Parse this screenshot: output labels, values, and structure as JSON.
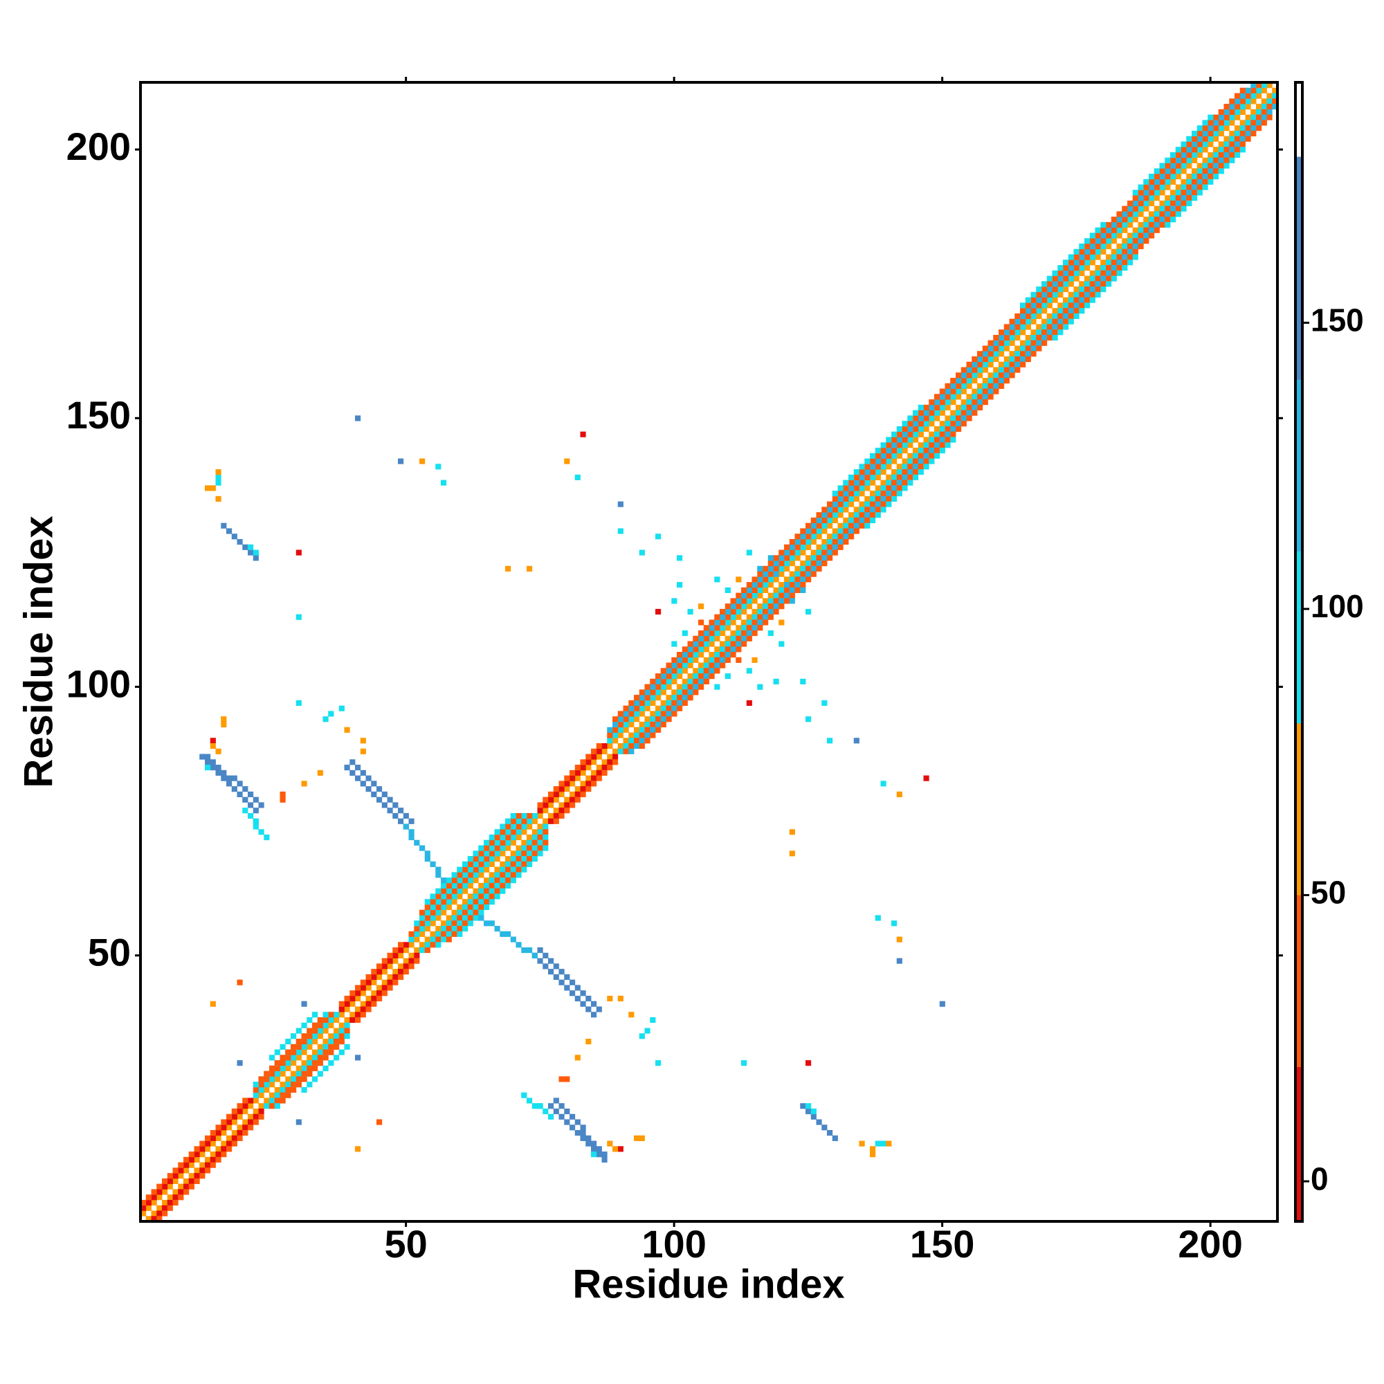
{
  "chart_data": {
    "type": "heatmap",
    "x_label": "Residue index",
    "y_label": "Residue index",
    "xlim": [
      0.5,
      212.5
    ],
    "ylim": [
      0.5,
      212.5
    ],
    "xticks": [
      50,
      100,
      150,
      200
    ],
    "yticks": [
      50,
      100,
      150,
      200
    ],
    "symmetric": true,
    "colorbar": {
      "lim": [
        -7,
        192
      ],
      "ticks": [
        0,
        50,
        100,
        150
      ],
      "bands": [
        {
          "from": -7,
          "to": 20,
          "color": "#e30d0d"
        },
        {
          "from": 20,
          "to": 50,
          "color": "#ff5a0a"
        },
        {
          "from": 50,
          "to": 80,
          "color": "#ff9a00"
        },
        {
          "from": 80,
          "to": 110,
          "color": "#16e0ef"
        },
        {
          "from": 110,
          "to": 140,
          "color": "#29b6e3"
        },
        {
          "from": 140,
          "to": 179,
          "color": "#4a86c5"
        },
        {
          "from": 179,
          "to": 192,
          "color": "#ffffff"
        }
      ]
    },
    "runs": [
      [
        1,
        2,
        211,
        212,
        60
      ],
      [
        1,
        3,
        21,
        23,
        10
      ],
      [
        22,
        24,
        37,
        39,
        100
      ],
      [
        38,
        40,
        50,
        52,
        10
      ],
      [
        51,
        53,
        74,
        76,
        100
      ],
      [
        75,
        77,
        87,
        89,
        10
      ],
      [
        88,
        90,
        210,
        212,
        100
      ],
      [
        1,
        4,
        20,
        23,
        35
      ],
      [
        22,
        25,
        36,
        39,
        35
      ],
      [
        38,
        41,
        49,
        52,
        35
      ],
      [
        51,
        54,
        73,
        76,
        35
      ],
      [
        75,
        78,
        86,
        89,
        35
      ],
      [
        88,
        91,
        209,
        212,
        35
      ],
      [
        22,
        26,
        35,
        39,
        100
      ],
      [
        52,
        56,
        72,
        76,
        100
      ],
      [
        88,
        92,
        208,
        212,
        110
      ],
      [
        23,
        27,
        34,
        38,
        35
      ],
      [
        53,
        58,
        71,
        76,
        35
      ],
      [
        89,
        94,
        206,
        211,
        35
      ],
      [
        25,
        31,
        33,
        39,
        100
      ],
      [
        54,
        60,
        70,
        76,
        100
      ],
      [
        130,
        136,
        146,
        152,
        100
      ],
      [
        165,
        171,
        180,
        186,
        100
      ],
      [
        186,
        192,
        200,
        206,
        100
      ],
      [
        74,
        50,
        85,
        39,
        160
      ],
      [
        75,
        51,
        86,
        40,
        150
      ],
      [
        64,
        57,
        74,
        50,
        110
      ],
      [
        77,
        22,
        87,
        12,
        160
      ],
      [
        78,
        23,
        87,
        13,
        140
      ],
      [
        124,
        22,
        130,
        16,
        160
      ],
      [
        72,
        24,
        77,
        20,
        100
      ]
    ],
    "cells": [
      [
        150,
        41,
        160
      ],
      [
        142,
        49,
        160
      ],
      [
        142,
        53,
        60
      ],
      [
        141,
        56,
        100
      ],
      [
        138,
        57,
        100
      ],
      [
        147,
        83,
        10
      ],
      [
        142,
        80,
        60
      ],
      [
        139,
        82,
        100
      ],
      [
        134,
        90,
        160
      ],
      [
        129,
        90,
        100
      ],
      [
        128,
        97,
        100
      ],
      [
        122,
        69,
        60
      ],
      [
        122,
        73,
        60
      ],
      [
        125,
        30,
        15
      ],
      [
        113,
        30,
        100
      ],
      [
        97,
        30,
        100
      ],
      [
        94,
        35,
        100
      ],
      [
        92,
        39,
        60
      ],
      [
        82,
        31,
        60
      ],
      [
        79,
        27,
        35
      ],
      [
        114,
        97,
        15
      ],
      [
        115,
        105,
        60
      ],
      [
        119,
        101,
        100
      ],
      [
        124,
        101,
        100
      ],
      [
        125,
        114,
        100
      ],
      [
        125,
        94,
        100
      ],
      [
        41,
        14,
        60
      ],
      [
        45,
        19,
        35
      ],
      [
        30,
        19,
        160
      ],
      [
        41,
        31,
        160
      ],
      [
        90,
        14,
        15
      ],
      [
        94,
        16,
        60
      ],
      [
        80,
        27,
        35
      ],
      [
        84,
        34,
        60
      ],
      [
        96,
        38,
        100
      ],
      [
        137,
        14,
        60
      ],
      [
        139,
        15,
        100
      ],
      [
        75,
        22,
        100
      ],
      [
        112,
        105,
        35
      ],
      [
        114,
        103,
        100
      ],
      [
        118,
        110,
        100
      ],
      [
        120,
        112,
        60
      ],
      [
        116,
        100,
        100
      ],
      [
        120,
        108,
        100
      ],
      [
        122,
        116,
        130
      ],
      [
        124,
        118,
        130
      ],
      [
        121,
        119,
        130
      ],
      [
        110,
        102,
        100
      ],
      [
        108,
        100,
        100
      ],
      [
        125,
        22,
        100
      ],
      [
        126,
        21,
        100
      ],
      [
        135,
        15,
        60
      ],
      [
        137,
        13,
        60
      ],
      [
        138,
        15,
        100
      ],
      [
        140,
        15,
        60
      ],
      [
        88,
        15,
        60
      ],
      [
        89,
        14,
        60
      ],
      [
        93,
        16,
        60
      ],
      [
        85,
        13,
        100
      ],
      [
        88,
        42,
        60
      ],
      [
        90,
        42,
        60
      ],
      [
        95,
        36,
        100
      ]
    ]
  }
}
